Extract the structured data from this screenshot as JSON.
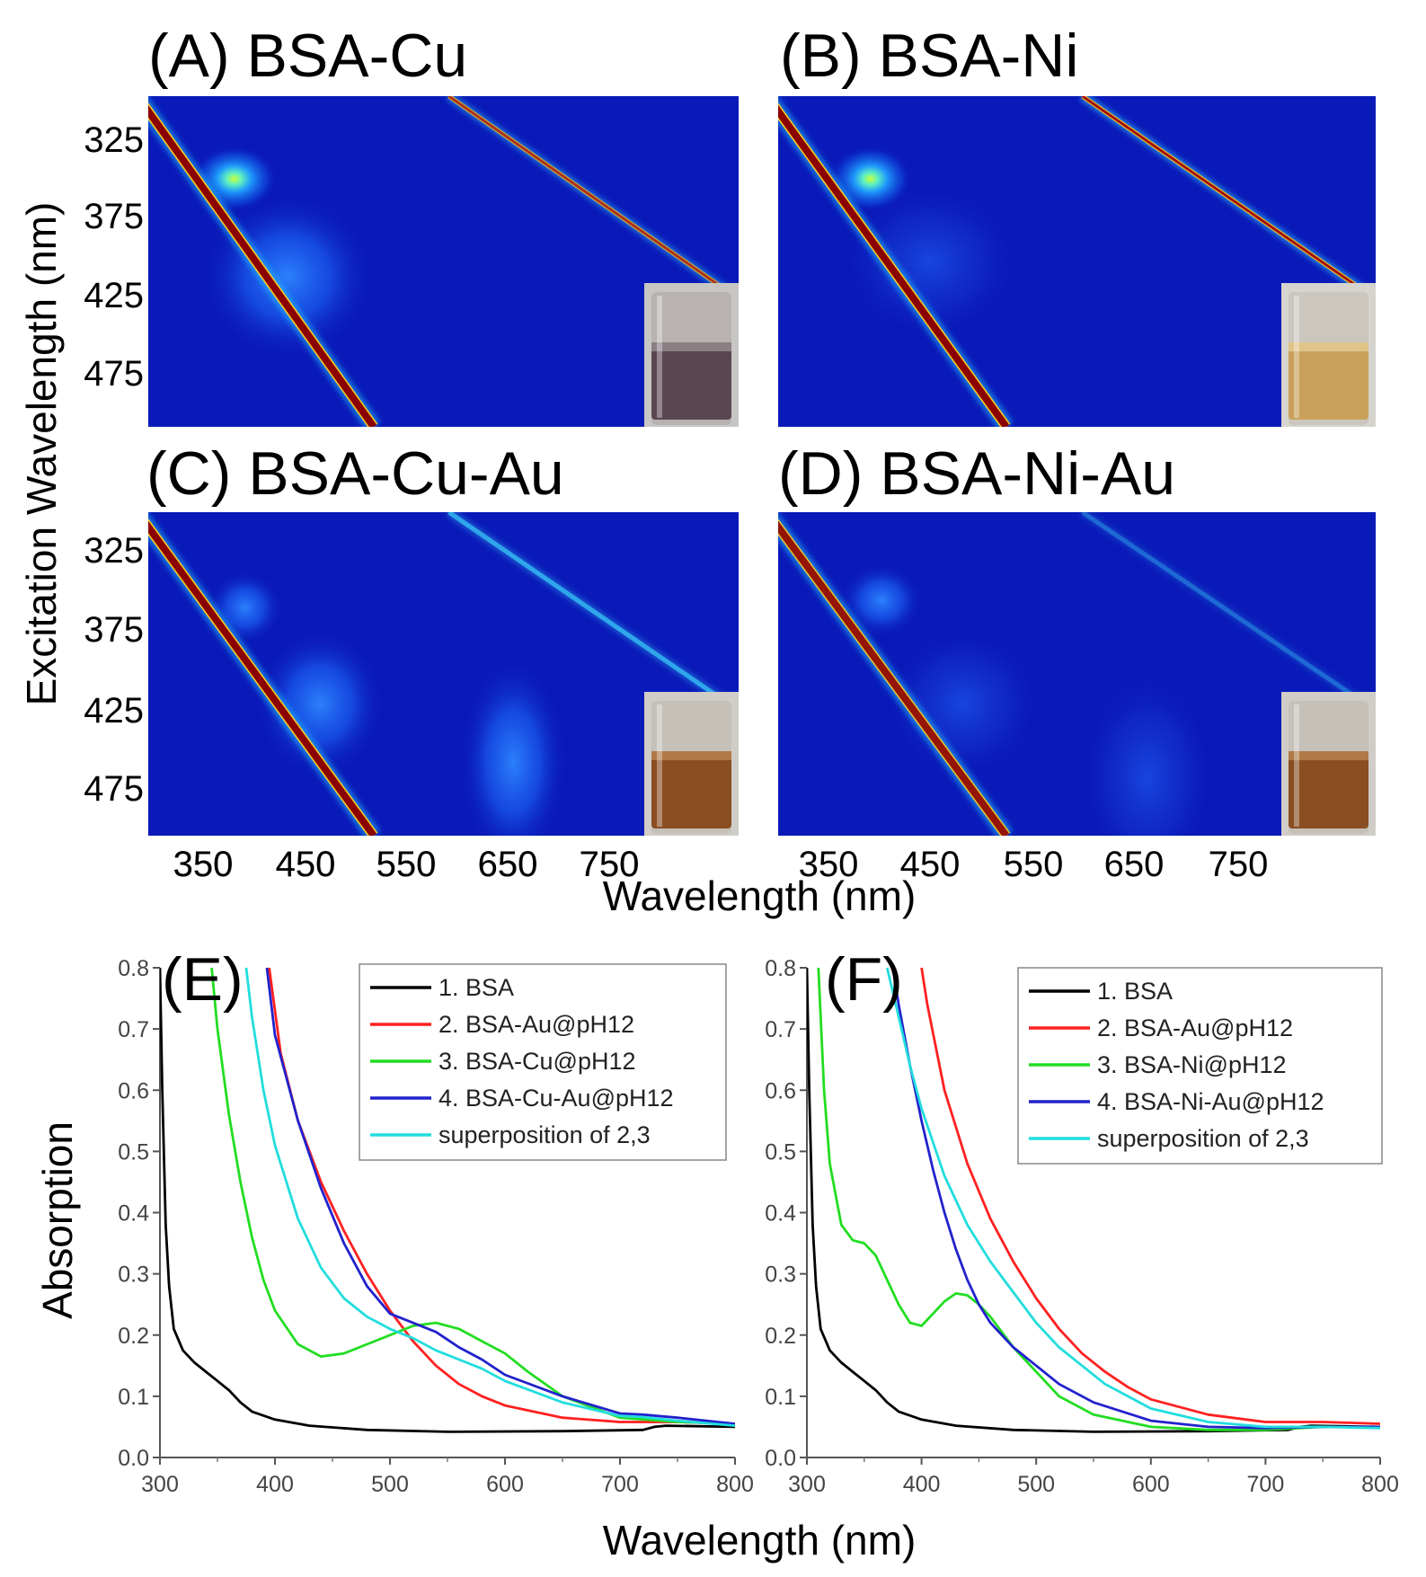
{
  "chart_data": [
    {
      "type": "heatmap",
      "panel": "A",
      "title": "(A) BSA-Cu",
      "x_ticks": [
        "350",
        "450",
        "550",
        "650",
        "750"
      ],
      "y_ticks": [
        "325",
        "375",
        "425",
        "475"
      ],
      "xlim": [
        300,
        850
      ],
      "ylim": [
        290,
        510
      ],
      "peaks": [
        {
          "em": 380,
          "ex": 345,
          "intensity": 0.82,
          "width_em": 40,
          "width_ex": 22
        },
        {
          "em": 430,
          "ex": 410,
          "intensity": 0.32,
          "width_em": 80,
          "width_ex": 55
        }
      ],
      "rayleigh_intensity": 1.0,
      "second_order_intensity": 0.8,
      "inset": "vial-purple"
    },
    {
      "type": "heatmap",
      "panel": "B",
      "title": "(B) BSA-Ni",
      "x_ticks": [
        "350",
        "450",
        "550",
        "650",
        "750"
      ],
      "y_ticks": [
        "325",
        "375",
        "425",
        "475"
      ],
      "xlim": [
        300,
        850
      ],
      "ylim": [
        290,
        510
      ],
      "peaks": [
        {
          "em": 385,
          "ex": 345,
          "intensity": 0.88,
          "width_em": 38,
          "width_ex": 22
        },
        {
          "em": 440,
          "ex": 400,
          "intensity": 0.2,
          "width_em": 80,
          "width_ex": 50
        }
      ],
      "rayleigh_intensity": 1.0,
      "second_order_intensity": 1.0,
      "inset": "vial-yellow"
    },
    {
      "type": "heatmap",
      "panel": "C",
      "title": "(C) BSA-Cu-Au",
      "x_ticks": [
        "350",
        "450",
        "550",
        "650",
        "750"
      ],
      "y_ticks": [
        "325",
        "375",
        "425",
        "475"
      ],
      "xlim": [
        300,
        850
      ],
      "ylim": [
        290,
        510
      ],
      "peaks": [
        {
          "em": 390,
          "ex": 355,
          "intensity": 0.4,
          "width_em": 35,
          "width_ex": 25
        },
        {
          "em": 460,
          "ex": 420,
          "intensity": 0.35,
          "width_em": 60,
          "width_ex": 50
        },
        {
          "em": 640,
          "ex": 460,
          "intensity": 0.42,
          "width_em": 50,
          "width_ex": 70
        }
      ],
      "rayleigh_intensity": 1.0,
      "second_order_intensity": 0.6,
      "inset": "vial-brown"
    },
    {
      "type": "heatmap",
      "panel": "D",
      "title": "(D) BSA-Ni-Au",
      "x_ticks": [
        "350",
        "450",
        "550",
        "650",
        "750"
      ],
      "y_ticks": [
        "325",
        "375",
        "425",
        "475"
      ],
      "xlim": [
        300,
        850
      ],
      "ylim": [
        290,
        510
      ],
      "peaks": [
        {
          "em": 395,
          "ex": 350,
          "intensity": 0.5,
          "width_em": 38,
          "width_ex": 25
        },
        {
          "em": 470,
          "ex": 420,
          "intensity": 0.2,
          "width_em": 70,
          "width_ex": 50
        },
        {
          "em": 640,
          "ex": 470,
          "intensity": 0.28,
          "width_em": 60,
          "width_ex": 70
        }
      ],
      "rayleigh_intensity": 0.9,
      "second_order_intensity": 0.3,
      "inset": "vial-brown"
    },
    {
      "type": "line",
      "panel": "E",
      "title": "(E)",
      "xlim": [
        300,
        800
      ],
      "ylim": [
        0,
        0.8
      ],
      "x_ticks": [
        "300",
        "400",
        "500",
        "600",
        "700",
        "800"
      ],
      "y_ticks": [
        "0.0",
        "0.1",
        "0.2",
        "0.3",
        "0.4",
        "0.5",
        "0.6",
        "0.7",
        "0.8"
      ],
      "legend": "top-right",
      "series": [
        {
          "name": "1. BSA",
          "color": "#000000",
          "x": [
            300,
            302,
            305,
            308,
            312,
            320,
            330,
            340,
            350,
            360,
            370,
            380,
            400,
            430,
            480,
            550,
            650,
            720,
            730,
            740,
            800
          ],
          "y": [
            0.8,
            0.6,
            0.38,
            0.28,
            0.21,
            0.175,
            0.155,
            0.14,
            0.125,
            0.11,
            0.09,
            0.075,
            0.062,
            0.052,
            0.045,
            0.042,
            0.043,
            0.045,
            0.05,
            0.052,
            0.05
          ]
        },
        {
          "name": "2. BSA-Au@pH12",
          "color": "#ff2020",
          "x": [
            395,
            405,
            420,
            440,
            460,
            480,
            500,
            520,
            540,
            560,
            580,
            600,
            650,
            700,
            720,
            750,
            800
          ],
          "y": [
            0.8,
            0.66,
            0.55,
            0.45,
            0.37,
            0.3,
            0.24,
            0.19,
            0.15,
            0.12,
            0.1,
            0.085,
            0.065,
            0.058,
            0.058,
            0.058,
            0.055
          ]
        },
        {
          "name": "3. BSA-Cu@pH12",
          "color": "#22dd22",
          "x": [
            345,
            350,
            360,
            370,
            380,
            390,
            400,
            420,
            440,
            460,
            480,
            500,
            520,
            540,
            560,
            580,
            600,
            620,
            650,
            700,
            750,
            800
          ],
          "y": [
            0.8,
            0.7,
            0.56,
            0.45,
            0.36,
            0.29,
            0.24,
            0.185,
            0.165,
            0.17,
            0.185,
            0.2,
            0.215,
            0.22,
            0.21,
            0.19,
            0.17,
            0.14,
            0.1,
            0.065,
            0.058,
            0.055
          ]
        },
        {
          "name": "4. BSA-Cu-Au@pH12",
          "color": "#2222cc",
          "x": [
            393,
            400,
            420,
            440,
            460,
            480,
            500,
            520,
            540,
            560,
            580,
            600,
            650,
            700,
            720,
            750,
            800
          ],
          "y": [
            0.8,
            0.69,
            0.55,
            0.44,
            0.35,
            0.28,
            0.235,
            0.22,
            0.205,
            0.18,
            0.16,
            0.135,
            0.1,
            0.072,
            0.07,
            0.065,
            0.055
          ]
        },
        {
          "name": "superposition of 2,3",
          "color": "#22dddd",
          "x": [
            375,
            380,
            390,
            400,
            420,
            440,
            460,
            480,
            500,
            520,
            540,
            560,
            580,
            600,
            650,
            700,
            720,
            750,
            800
          ],
          "y": [
            0.8,
            0.72,
            0.6,
            0.51,
            0.39,
            0.31,
            0.26,
            0.23,
            0.21,
            0.195,
            0.175,
            0.16,
            0.145,
            0.125,
            0.09,
            0.068,
            0.066,
            0.06,
            0.052
          ]
        }
      ]
    },
    {
      "type": "line",
      "panel": "F",
      "title": "(F)",
      "xlim": [
        300,
        800
      ],
      "ylim": [
        0,
        0.8
      ],
      "x_ticks": [
        "300",
        "400",
        "500",
        "600",
        "700",
        "800"
      ],
      "y_ticks": [
        "0.0",
        "0.1",
        "0.2",
        "0.3",
        "0.4",
        "0.5",
        "0.6",
        "0.7",
        "0.8"
      ],
      "legend": "top-right",
      "series": [
        {
          "name": "1. BSA",
          "color": "#000000",
          "x": [
            300,
            302,
            305,
            308,
            312,
            320,
            330,
            340,
            350,
            360,
            370,
            380,
            400,
            430,
            480,
            550,
            650,
            720,
            730,
            740,
            800
          ],
          "y": [
            0.8,
            0.6,
            0.38,
            0.28,
            0.21,
            0.175,
            0.155,
            0.14,
            0.125,
            0.11,
            0.09,
            0.075,
            0.062,
            0.052,
            0.045,
            0.042,
            0.043,
            0.045,
            0.05,
            0.052,
            0.05
          ]
        },
        {
          "name": "2. BSA-Au@pH12",
          "color": "#ff2020",
          "x": [
            400,
            405,
            420,
            440,
            460,
            480,
            500,
            520,
            540,
            560,
            580,
            600,
            650,
            700,
            750,
            800
          ],
          "y": [
            0.8,
            0.74,
            0.6,
            0.48,
            0.39,
            0.32,
            0.26,
            0.21,
            0.17,
            0.14,
            0.115,
            0.095,
            0.07,
            0.058,
            0.058,
            0.055
          ]
        },
        {
          "name": "3. BSA-Ni@pH12",
          "color": "#22dd22",
          "x": [
            310,
            312,
            315,
            320,
            330,
            340,
            350,
            360,
            370,
            380,
            390,
            400,
            410,
            420,
            430,
            440,
            450,
            460,
            470,
            480,
            500,
            520,
            550,
            600,
            650,
            700,
            750,
            800
          ],
          "y": [
            0.8,
            0.72,
            0.6,
            0.48,
            0.38,
            0.355,
            0.35,
            0.33,
            0.29,
            0.25,
            0.22,
            0.215,
            0.235,
            0.255,
            0.268,
            0.265,
            0.25,
            0.23,
            0.205,
            0.18,
            0.14,
            0.1,
            0.07,
            0.05,
            0.045,
            0.045,
            0.05,
            0.05
          ]
        },
        {
          "name": "4. BSA-Ni-Au@pH12",
          "color": "#2222cc",
          "x": [
            375,
            380,
            390,
            400,
            410,
            420,
            430,
            440,
            450,
            460,
            480,
            500,
            520,
            550,
            600,
            650,
            700,
            750,
            800
          ],
          "y": [
            0.8,
            0.74,
            0.64,
            0.55,
            0.47,
            0.4,
            0.34,
            0.29,
            0.25,
            0.22,
            0.18,
            0.15,
            0.12,
            0.09,
            0.06,
            0.05,
            0.048,
            0.05,
            0.05
          ]
        },
        {
          "name": "superposition of 2,3",
          "color": "#22dddd",
          "x": [
            370,
            380,
            390,
            400,
            420,
            440,
            460,
            480,
            500,
            520,
            540,
            560,
            580,
            600,
            650,
            700,
            750,
            800
          ],
          "y": [
            0.8,
            0.72,
            0.64,
            0.57,
            0.46,
            0.38,
            0.32,
            0.27,
            0.22,
            0.18,
            0.15,
            0.12,
            0.1,
            0.08,
            0.058,
            0.05,
            0.05,
            0.048
          ]
        }
      ]
    }
  ],
  "labels": {
    "y_axis_top": "Excitation Wavelength (nm)",
    "x_axis_top": "Wavelength (nm)",
    "y_axis_bottom": "Absorption",
    "x_axis_bottom": "Wavelength (nm)"
  },
  "colors": {
    "background_blue": "#0a1ab8",
    "rayleigh": "#8b0000",
    "axis": "#555555"
  }
}
